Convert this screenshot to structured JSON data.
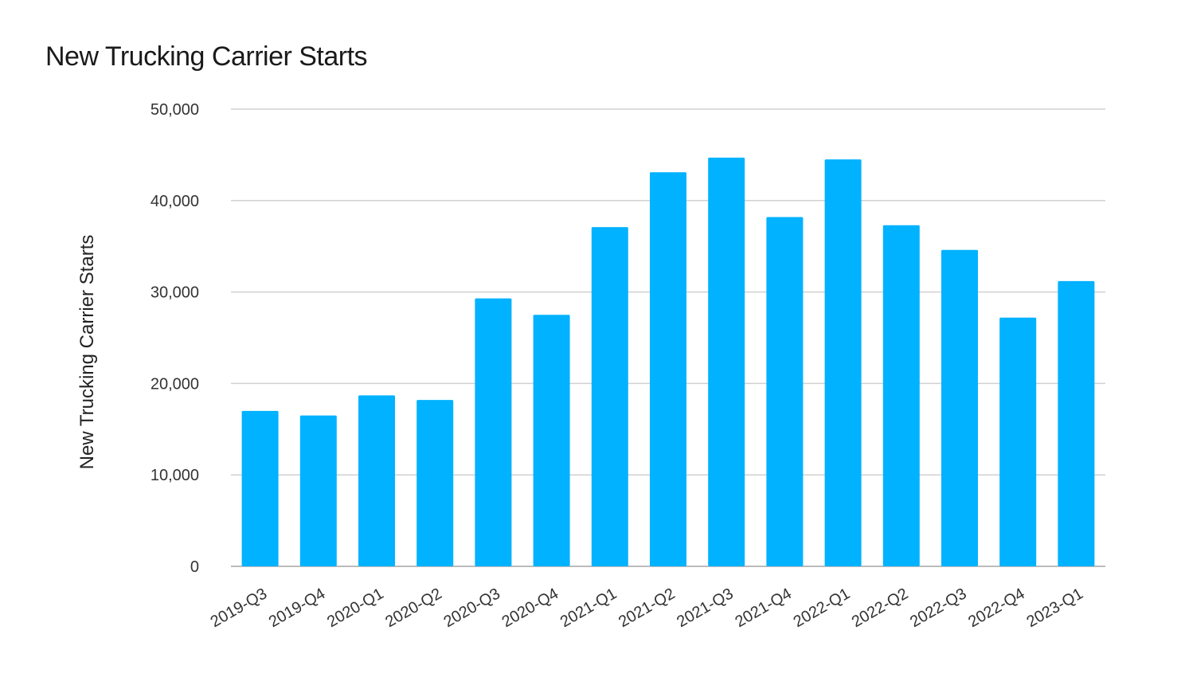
{
  "chart_data": {
    "type": "bar",
    "title": "New Trucking Carrier Starts",
    "xlabel": "",
    "ylabel": "New Trucking Carrier Starts",
    "ylim": [
      0,
      50000
    ],
    "yticks": [
      0,
      10000,
      20000,
      30000,
      40000,
      50000
    ],
    "ytick_labels": [
      "0",
      "10,000",
      "20,000",
      "30,000",
      "40,000",
      "50,000"
    ],
    "grid": true,
    "color": "#00B2FF",
    "categories": [
      "2019-Q3",
      "2019-Q4",
      "2020-Q1",
      "2020-Q2",
      "2020-Q3",
      "2020-Q4",
      "2021-Q1",
      "2021-Q2",
      "2021-Q3",
      "2021-Q4",
      "2022-Q1",
      "2022-Q2",
      "2022-Q3",
      "2022-Q4",
      "2023-Q1"
    ],
    "values": [
      17000,
      16500,
      18700,
      18200,
      29300,
      27500,
      37100,
      43100,
      44700,
      38200,
      44500,
      37300,
      34600,
      27200,
      31200
    ]
  }
}
